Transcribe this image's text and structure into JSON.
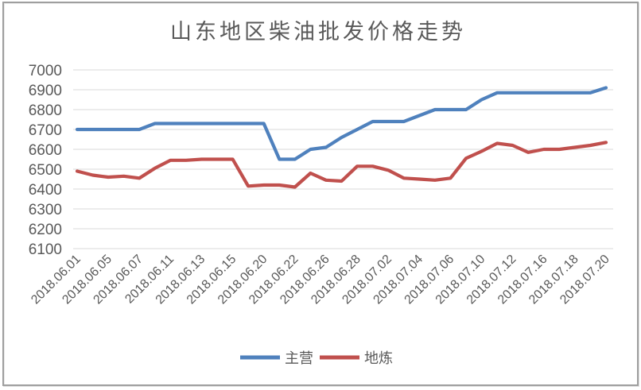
{
  "chart_data": {
    "type": "line",
    "title": "山东地区柴油批发价格走势",
    "ylim": [
      6100,
      7000
    ],
    "yticks": [
      7000,
      6900,
      6800,
      6700,
      6600,
      6500,
      6400,
      6300,
      6200,
      6100
    ],
    "grid": true,
    "legend_position": "bottom",
    "x_labels": [
      "2018.06.01",
      "2018.06.05",
      "2018.06.07",
      "2018.06.11",
      "2018.06.13",
      "2018.06.15",
      "2018.06.20",
      "2018.06.22",
      "2018.06.26",
      "2018.06.28",
      "2018.07.02",
      "2018.07.04",
      "2018.07.06",
      "2018.07.10",
      "2018.07.12",
      "2018.07.16",
      "2018.07.18",
      "2018.07.20"
    ],
    "x_label_point_step": 2,
    "series": [
      {
        "name": "主营",
        "color": "#4F81BD",
        "values": [
          6700,
          6700,
          6700,
          6700,
          6700,
          6730,
          6730,
          6730,
          6730,
          6730,
          6730,
          6730,
          6730,
          6550,
          6550,
          6600,
          6610,
          6660,
          6700,
          6740,
          6740,
          6740,
          6770,
          6800,
          6800,
          6800,
          6850,
          6885,
          6885,
          6885,
          6885,
          6885,
          6885,
          6885,
          6910
        ]
      },
      {
        "name": "地炼",
        "color": "#C0504D",
        "values": [
          6490,
          6470,
          6460,
          6465,
          6455,
          6505,
          6545,
          6545,
          6550,
          6550,
          6550,
          6415,
          6420,
          6420,
          6410,
          6480,
          6445,
          6440,
          6515,
          6515,
          6495,
          6455,
          6450,
          6445,
          6455,
          6555,
          6590,
          6630,
          6620,
          6585,
          6600,
          6600,
          6610,
          6620,
          6635
        ]
      }
    ],
    "style": {
      "title_color": "#595959",
      "axis_text_color": "#595959",
      "gridline_color": "#d9d9d9",
      "frame_border_color": "#9f9f9f"
    }
  }
}
